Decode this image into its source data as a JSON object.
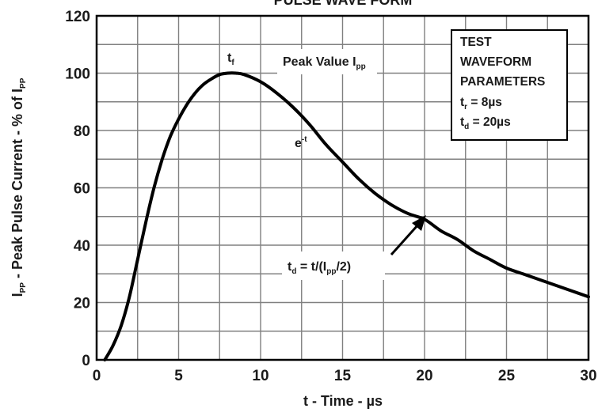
{
  "chart_data": {
    "type": "line",
    "title": "PULSE WAVE FORM",
    "xlabel": "t - Time - µs",
    "ylabel": {
      "main": "I",
      "sub": "PP",
      "rest": " - Peak Pulse Current - % of I",
      "sub2": "PP"
    },
    "xlim": [
      0,
      30
    ],
    "ylim": [
      0,
      120
    ],
    "xticks": [
      "0",
      "5",
      "10",
      "15",
      "20",
      "25",
      "30"
    ],
    "yticks": [
      "0",
      "20",
      "40",
      "60",
      "80",
      "100",
      "120"
    ],
    "grid": true,
    "series": [
      {
        "x": [
          0.5,
          1,
          1.5,
          2,
          2.5,
          3,
          3.5,
          4,
          4.5,
          5,
          5.5,
          6,
          6.5,
          7,
          7.5,
          8,
          8.5,
          9,
          10,
          11,
          12,
          13,
          14,
          15,
          16,
          17,
          18,
          19,
          20,
          21,
          22,
          23,
          24,
          25,
          26,
          27,
          28,
          29,
          30
        ],
        "y": [
          0,
          5,
          12,
          22,
          35,
          48,
          60,
          70,
          78,
          84,
          89,
          93,
          96,
          98,
          99.5,
          100,
          100,
          99.5,
          97,
          93,
          88,
          82,
          75,
          69,
          63,
          58,
          54,
          51,
          49,
          45,
          42,
          38,
          35,
          32,
          30,
          28,
          26,
          24,
          22
        ]
      }
    ],
    "annotations": {
      "tf_label": {
        "main": "t",
        "sub": "f"
      },
      "peak_label": {
        "main": "Peak Value I",
        "sub": "pp"
      },
      "exp_label": {
        "main": "e",
        "sup": "-t"
      },
      "td_label": {
        "main": "t",
        "sub": "d",
        "rest": " = t/(I",
        "sub2": "pp",
        "end": "/2)"
      }
    },
    "legend_box": {
      "line1": "TEST",
      "line2": "WAVEFORM",
      "line3": "PARAMETERS",
      "tf": {
        "main": "t",
        "sub": "r",
        "rest": " = 8µs"
      },
      "td": {
        "main": "t",
        "sub": "d",
        "rest": " = 20µs"
      }
    },
    "colors": {
      "curve": "#000000",
      "grid": "#808080",
      "frame": "#000000",
      "text": "#1a1a1a"
    }
  }
}
